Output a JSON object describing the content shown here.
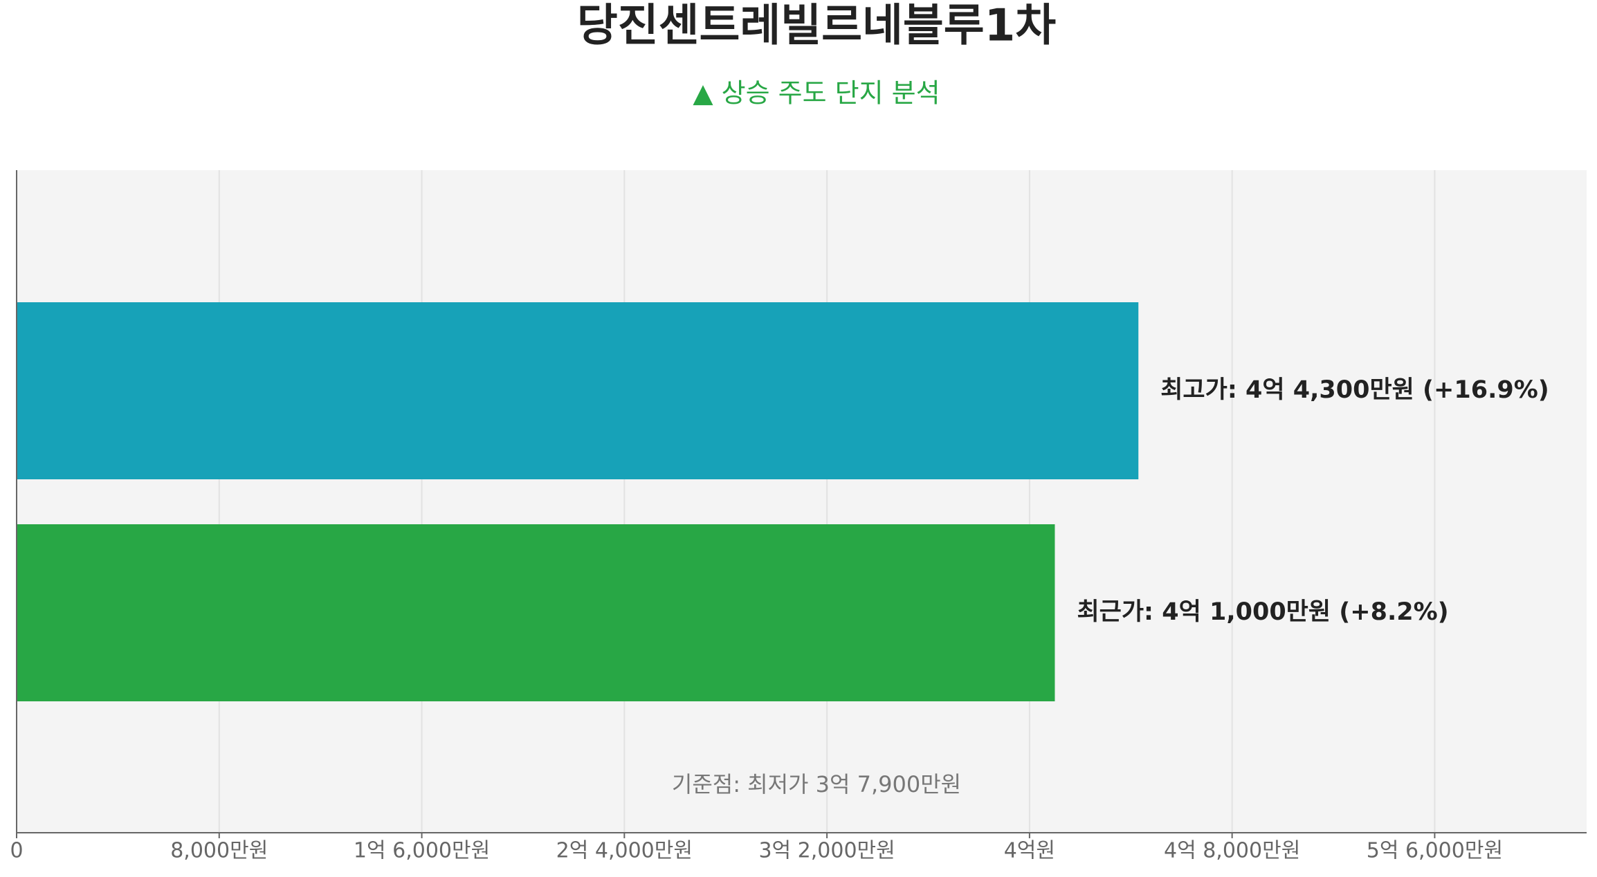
{
  "chart_data": {
    "type": "hbar",
    "title": "당진센트레빌르네블루1차",
    "subtitle": "▲ 상승 주도 단지 분석",
    "values": [
      44300,
      41000
    ],
    "value_labels": [
      "최고가: 4억 4,300만원 (+16.9%)",
      "최근가: 4억 1,000만원 (+8.2%)"
    ],
    "colors": [
      "#17a2b8",
      "#28a745"
    ],
    "annotation": "기준점: 최저가 3억 7,900만원",
    "xlim": [
      0,
      62000
    ],
    "xticks": [
      0,
      {
        "value": 8000,
        "label": "8,000만원"
      },
      {
        "value": 16000,
        "label": "1억 6,000만원"
      },
      {
        "value": 24000,
        "label": "2억 4,000만원"
      },
      {
        "value": 32000,
        "label": "3억 2,000만원"
      },
      {
        "value": 40000,
        "label": "4억원"
      },
      {
        "value": 48000,
        "label": "4억 8,000만원"
      },
      {
        "value": 56000,
        "label": "5억 6,000만원"
      }
    ],
    "grid": true
  }
}
